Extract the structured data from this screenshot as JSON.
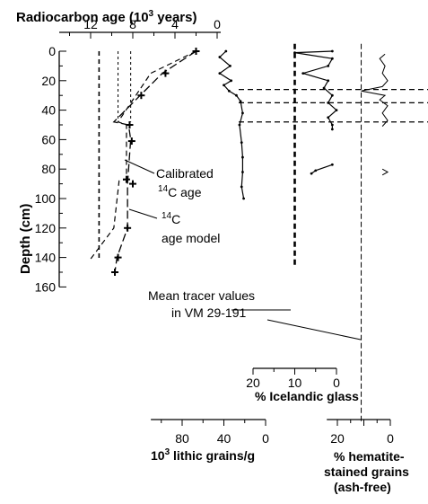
{
  "chart_data": {
    "type": "line",
    "depth_axis": {
      "label": "Depth (cm)",
      "ticks": [
        0,
        20,
        40,
        60,
        80,
        100,
        120,
        140,
        160
      ],
      "range": [
        0,
        160
      ]
    },
    "age_panel": {
      "title": "Radiocarbon age (10",
      "title_sup": "3",
      "title_end": " years)",
      "ticks": [
        12,
        8,
        4,
        0
      ],
      "range": [
        14,
        0
      ],
      "reference_ages": [
        11.2,
        9.4,
        8.2
      ],
      "calibrated_age": [
        [
          2,
          0
        ],
        [
          5.2,
          15
        ],
        [
          7.3,
          30
        ],
        [
          9.8,
          48
        ],
        [
          8.4,
          50
        ],
        [
          8.2,
          60
        ],
        [
          8.5,
          90
        ],
        [
          8.5,
          120
        ],
        [
          9.5,
          140
        ],
        [
          9.7,
          150
        ]
      ],
      "age_model": [
        [
          2,
          0
        ],
        [
          6.3,
          15
        ],
        [
          9.4,
          48
        ],
        [
          8.6,
          50
        ],
        [
          8.6,
          87
        ],
        [
          9.3,
          88
        ],
        [
          9.8,
          120
        ],
        [
          12.0,
          141
        ]
      ],
      "dated_points": [
        [
          2,
          0
        ],
        [
          4.9,
          15
        ],
        [
          7.2,
          30
        ],
        [
          8.3,
          50
        ],
        [
          8.1,
          61
        ],
        [
          8.6,
          87
        ],
        [
          8.0,
          90
        ],
        [
          8.5,
          120
        ],
        [
          9.4,
          140
        ],
        [
          9.7,
          150
        ]
      ]
    },
    "lithic_panel": {
      "ticks": [
        80,
        40,
        0
      ],
      "range": [
        110,
        0
      ],
      "series": [
        [
          38,
          0
        ],
        [
          44,
          4
        ],
        [
          34,
          10
        ],
        [
          44,
          15
        ],
        [
          33,
          20
        ],
        [
          40,
          23
        ],
        [
          35,
          27
        ],
        [
          28,
          30
        ],
        [
          24,
          34
        ],
        [
          22,
          42
        ],
        [
          25,
          50
        ],
        [
          23,
          62
        ],
        [
          22,
          72
        ],
        [
          22,
          82
        ],
        [
          23,
          92
        ],
        [
          21,
          100
        ]
      ]
    },
    "glass_panel": {
      "ticks": [
        20,
        10,
        0
      ],
      "range": [
        20,
        0
      ],
      "mean": 10,
      "series": [
        [
          1,
          0
        ],
        [
          10,
          1
        ],
        [
          1,
          5
        ],
        [
          2,
          10
        ],
        [
          8,
          15
        ],
        [
          2,
          20
        ],
        [
          3,
          25
        ],
        [
          1,
          30
        ],
        [
          2,
          35
        ],
        [
          0,
          40
        ],
        [
          2,
          45
        ],
        [
          1,
          50
        ],
        [
          1,
          53
        ]
      ],
      "extra_segments": [
        [
          [
            1,
            77
          ],
          [
            5,
            81
          ],
          [
            6,
            83
          ]
        ]
      ]
    },
    "hematite_panel": {
      "ticks": [
        20,
        0
      ],
      "range": [
        20,
        0
      ],
      "mean": 11,
      "series": [
        [
          2,
          2
        ],
        [
          4,
          5
        ],
        [
          2,
          10
        ],
        [
          3,
          15
        ],
        [
          1,
          20
        ],
        [
          3,
          24
        ],
        [
          11,
          27
        ],
        [
          2,
          30
        ],
        [
          4,
          33
        ],
        [
          1,
          37
        ],
        [
          3,
          42
        ],
        [
          1,
          47
        ],
        [
          3,
          51
        ]
      ],
      "extra_segments": [
        [
          [
            3,
            80
          ],
          [
            1,
            82
          ],
          [
            3,
            84
          ]
        ]
      ]
    },
    "horizontal_markers": [
      26,
      35,
      48
    ],
    "annotations": {
      "calibrated_line1": "Calibrated",
      "calibrated_sup": "14",
      "calibrated_line2": "C age",
      "model_sup": "14",
      "model_line1": "C",
      "model_line2": "age model",
      "mean_line1": "Mean tracer values",
      "mean_line2": "in VM 29-191"
    },
    "glass_axis_label": "% Icelandic glass",
    "lithic_axis_label_sup": "3",
    "lithic_axis_label": "10",
    "lithic_axis_label_end": " lithic grains/g",
    "hematite_axis_label": [
      "% hematite-",
      "stained grains",
      "(ash-free)"
    ]
  }
}
